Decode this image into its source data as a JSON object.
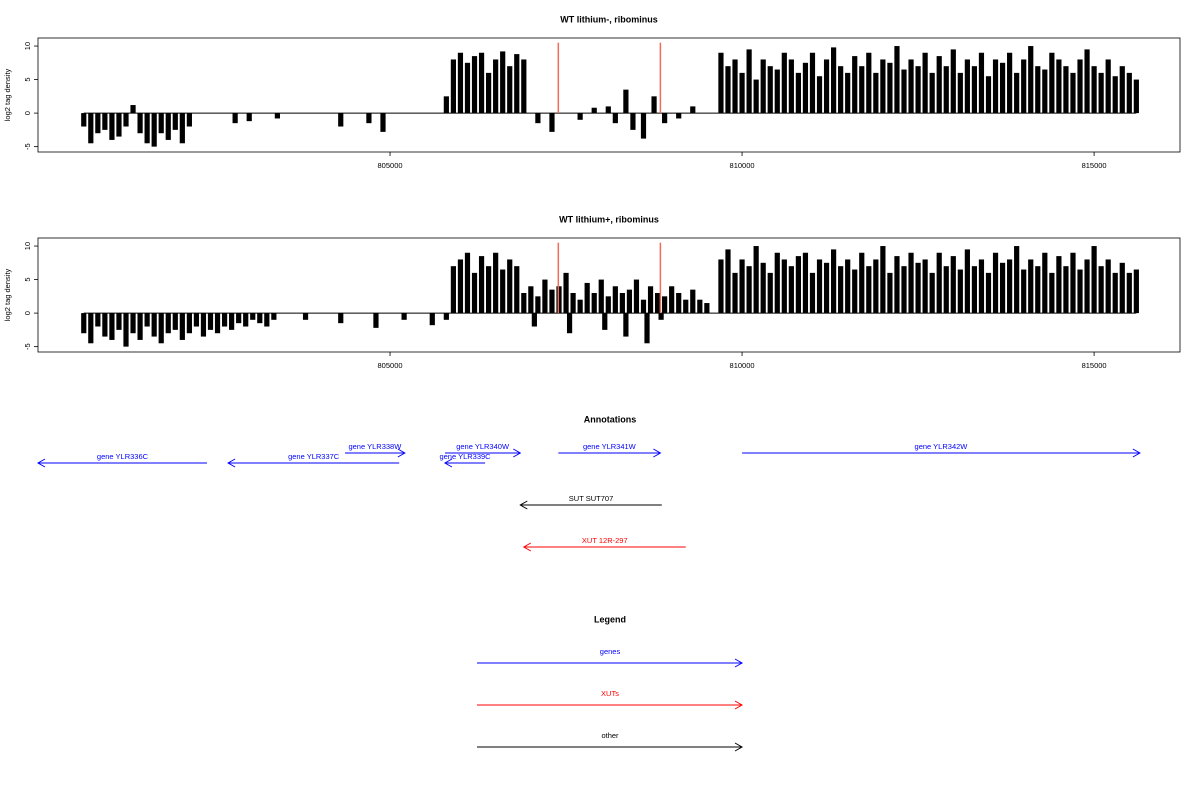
{
  "chart_data": [
    {
      "type": "bar",
      "title": "WT lithium-, ribominus",
      "ylabel": "log2 tag density",
      "color": "#000000",
      "xlim": [
        800000,
        816220
      ],
      "xticks": [
        805000,
        810000,
        815000
      ],
      "ylim": [
        -5.8,
        11.2
      ],
      "yticks": [
        -5,
        0,
        5,
        10
      ],
      "vlines": [
        807390,
        808840
      ],
      "vline_color": "#f26b5b",
      "x": [
        800650,
        800750,
        800850,
        800950,
        801050,
        801150,
        801250,
        801350,
        801450,
        801550,
        801650,
        801750,
        801850,
        801950,
        802050,
        802150,
        802800,
        803000,
        803400,
        804300,
        804700,
        804900,
        805800,
        805900,
        806000,
        806100,
        806200,
        806300,
        806400,
        806500,
        806600,
        806700,
        806800,
        806900,
        807100,
        807300,
        807700,
        807900,
        808100,
        808200,
        808350,
        808450,
        808600,
        808750,
        808900,
        809100,
        809300,
        809700,
        809800,
        809900,
        810000,
        810100,
        810200,
        810300,
        810400,
        810500,
        810600,
        810700,
        810800,
        810900,
        811000,
        811100,
        811200,
        811300,
        811400,
        811500,
        811600,
        811700,
        811800,
        811900,
        812000,
        812100,
        812200,
        812300,
        812400,
        812500,
        812600,
        812700,
        812800,
        812900,
        813000,
        813100,
        813200,
        813300,
        813400,
        813500,
        813600,
        813700,
        813800,
        813900,
        814000,
        814100,
        814200,
        814300,
        814400,
        814500,
        814600,
        814700,
        814800,
        814900,
        815000,
        815100,
        815200,
        815300,
        815400,
        815500,
        815600
      ],
      "values": [
        -2,
        -4.5,
        -3,
        -2.5,
        -4,
        -3.5,
        -2,
        1.2,
        -3,
        -4.5,
        -5,
        -3,
        -4,
        -2.5,
        -4.5,
        -2,
        -1.5,
        -1.2,
        -0.8,
        -2,
        -1.5,
        -2.8,
        2.5,
        8,
        9,
        7.5,
        8.5,
        9,
        6,
        8,
        9.2,
        7,
        8.8,
        8,
        -1.5,
        -2.8,
        -1,
        0.8,
        1,
        -1.5,
        3.5,
        -2.5,
        -3.8,
        2.5,
        -1.5,
        -0.8,
        1,
        9,
        7,
        8,
        6,
        9.5,
        5,
        8,
        7,
        6.5,
        9,
        8,
        6,
        7.5,
        9,
        5.5,
        8,
        9.8,
        7,
        6,
        8.5,
        7,
        9,
        6,
        8,
        7.5,
        10,
        6.5,
        8,
        7,
        9,
        6,
        8.5,
        7,
        9.5,
        6,
        8,
        7,
        9,
        5.5,
        8,
        7.5,
        9,
        6,
        8,
        10,
        7,
        6.5,
        9,
        8,
        7,
        6,
        8,
        9.5,
        7,
        6,
        8,
        5.5,
        7,
        6,
        5
      ]
    },
    {
      "type": "bar",
      "title": "WT lithium+, ribominus",
      "ylabel": "log2 tag density",
      "color": "#000000",
      "xlim": [
        800000,
        816220
      ],
      "xticks": [
        805000,
        810000,
        815000
      ],
      "ylim": [
        -5.8,
        11.2
      ],
      "yticks": [
        -5,
        0,
        5,
        10
      ],
      "vlines": [
        807390,
        808840
      ],
      "vline_color": "#f26b5b",
      "x": [
        800650,
        800750,
        800850,
        800950,
        801050,
        801150,
        801250,
        801350,
        801450,
        801550,
        801650,
        801750,
        801850,
        801950,
        802050,
        802150,
        802250,
        802350,
        802450,
        802550,
        802650,
        802750,
        802850,
        802950,
        803050,
        803150,
        803250,
        803350,
        803800,
        804300,
        804800,
        805200,
        805600,
        805800,
        805900,
        806000,
        806100,
        806200,
        806300,
        806400,
        806500,
        806600,
        806700,
        806800,
        806900,
        807000,
        807100,
        807200,
        807300,
        807400,
        807500,
        807600,
        807700,
        807800,
        807900,
        808000,
        808100,
        808200,
        808300,
        808400,
        808500,
        808600,
        808700,
        808800,
        808900,
        809000,
        809100,
        809200,
        809300,
        809400,
        809500,
        809700,
        809800,
        809900,
        810000,
        810100,
        810200,
        810300,
        810400,
        810500,
        810600,
        810700,
        810800,
        810900,
        811000,
        811100,
        811200,
        811300,
        811400,
        811500,
        811600,
        811700,
        811800,
        811900,
        812000,
        812100,
        812200,
        812300,
        812400,
        812500,
        812600,
        812700,
        812800,
        812900,
        813000,
        813100,
        813200,
        813300,
        813400,
        813500,
        813600,
        813700,
        813800,
        813900,
        814000,
        814100,
        814200,
        814300,
        814400,
        814500,
        814600,
        814700,
        814800,
        814900,
        815000,
        815100,
        815200,
        815300,
        815400,
        815500,
        815600,
        807050,
        807550,
        808050,
        808350,
        808650,
        808850
      ],
      "values": [
        -3,
        -4.5,
        -2,
        -3.5,
        -4,
        -2.5,
        -5,
        -3,
        -4,
        -2,
        -3.5,
        -4.5,
        -3,
        -2.5,
        -4,
        -3,
        -2,
        -3.5,
        -2.5,
        -3,
        -2,
        -2.5,
        -1.5,
        -2,
        -1,
        -1.5,
        -2,
        -1,
        -1,
        -1.5,
        -2.2,
        -1,
        -1.8,
        -1,
        7,
        8,
        9,
        6,
        8.5,
        7,
        9,
        6.5,
        8,
        7,
        3,
        4,
        2.5,
        5,
        3.5,
        4,
        6,
        3,
        2,
        4.5,
        3,
        5,
        2.5,
        4,
        3,
        3.5,
        5,
        2,
        4,
        3,
        2.5,
        4,
        3,
        2,
        3.5,
        2,
        1.5,
        8,
        9.5,
        6,
        8,
        7,
        10,
        7.5,
        6,
        9,
        8,
        7,
        8.5,
        9,
        6,
        8,
        7.5,
        9.5,
        7,
        8,
        6.5,
        9,
        7,
        8,
        10,
        6,
        8.5,
        7,
        9,
        7.5,
        8,
        6,
        9,
        7,
        8.5,
        6.5,
        9.5,
        7,
        8,
        6,
        9,
        7.5,
        8,
        10,
        6.5,
        8,
        7,
        9,
        6,
        8.5,
        7,
        9,
        6.5,
        8,
        10,
        7,
        8,
        6,
        7.5,
        6,
        6.5,
        -2,
        -3,
        -2.5,
        -3.5,
        -4.5,
        -1
      ]
    }
  ],
  "annotations": {
    "title": "Annotations",
    "features": [
      {
        "label": "gene YLR336C",
        "start": 800000,
        "end": 802400,
        "strand": "-",
        "color": "#0000ff"
      },
      {
        "label": "gene YLR337C",
        "start": 802700,
        "end": 805130,
        "strand": "-",
        "color": "#0000ff"
      },
      {
        "label": "gene YLR338W",
        "start": 804360,
        "end": 805210,
        "strand": "+",
        "color": "#0000ff"
      },
      {
        "label": "gene YLR340W",
        "start": 805780,
        "end": 806850,
        "strand": "+",
        "color": "#0000ff"
      },
      {
        "label": "gene YLR339C",
        "start": 805780,
        "end": 806350,
        "strand": "-",
        "color": "#0000ff"
      },
      {
        "label": "gene YLR341W",
        "start": 807390,
        "end": 808840,
        "strand": "+",
        "color": "#0000ff"
      },
      {
        "label": "gene YLR342W",
        "start": 810000,
        "end": 815650,
        "strand": "+",
        "color": "#0000ff"
      },
      {
        "label": "SUT SUT707",
        "start": 806850,
        "end": 808860,
        "strand": "-",
        "color": "#000000"
      },
      {
        "label": "XUT 12R-297",
        "start": 806900,
        "end": 809200,
        "strand": "-",
        "color": "#ff0000"
      }
    ]
  },
  "legend": {
    "title": "Legend",
    "items": [
      {
        "name": "genes",
        "color": "#0000ff"
      },
      {
        "name": "XUTs",
        "color": "#ff0000"
      },
      {
        "name": "other",
        "color": "#000000"
      }
    ]
  }
}
